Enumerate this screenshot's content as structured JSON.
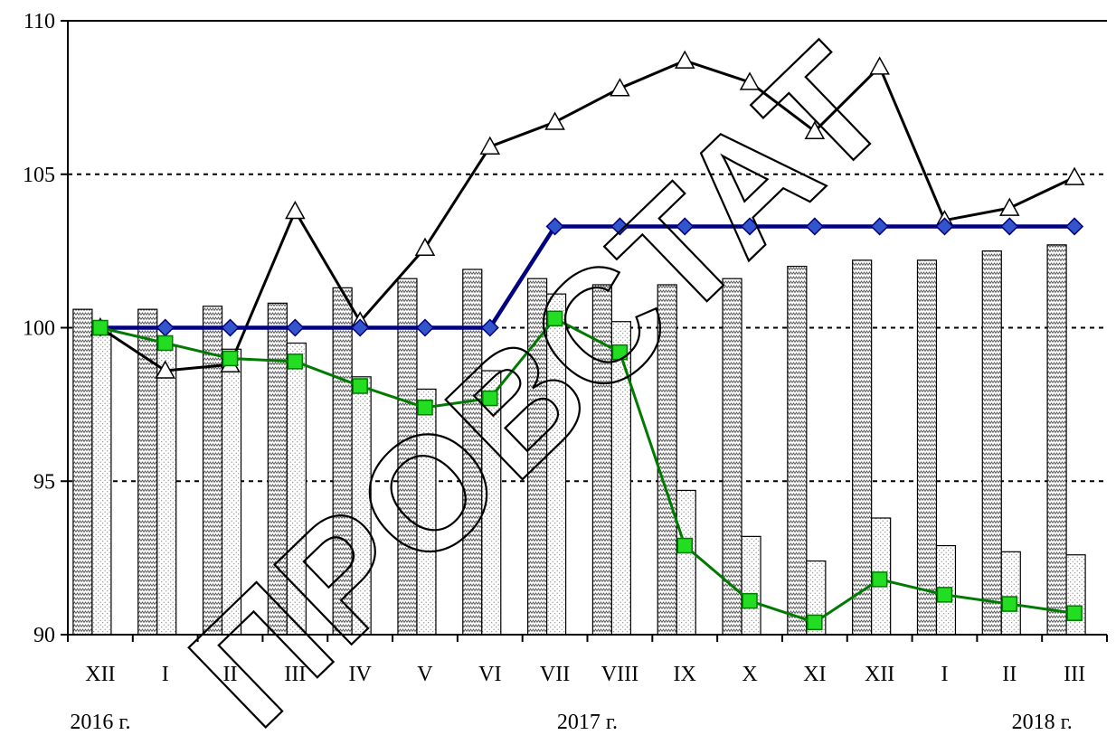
{
  "chart_data": {
    "type": "bar",
    "ylim": [
      90,
      110
    ],
    "yticks": [
      90,
      95,
      100,
      105,
      110
    ],
    "categories": [
      "XII",
      "I",
      "II",
      "III",
      "IV",
      "V",
      "VI",
      "VII",
      "VIII",
      "IX",
      "X",
      "XI",
      "XII",
      "I",
      "II",
      "III"
    ],
    "year_labels": [
      {
        "text": "2016 г.",
        "at_index": 0
      },
      {
        "text": "2017 г.",
        "at_index": 7.5
      },
      {
        "text": "2018 г.",
        "at_index": 14.5
      }
    ],
    "bar_series": [
      {
        "pattern": "zigzag",
        "values": [
          100.6,
          100.6,
          100.7,
          100.8,
          101.3,
          101.6,
          101.9,
          101.6,
          101.4,
          101.4,
          101.6,
          102.0,
          102.2,
          102.2,
          102.5,
          102.7
        ]
      },
      {
        "pattern": "dots",
        "values": [
          100.0,
          99.4,
          99.3,
          99.5,
          98.4,
          98.0,
          98.6,
          101.1,
          100.2,
          94.7,
          93.2,
          92.4,
          93.8,
          92.9,
          92.7,
          92.6
        ]
      }
    ],
    "line_series": [
      {
        "marker": "triangle",
        "color": "#000000",
        "values": [
          100.0,
          98.6,
          98.8,
          103.8,
          100.2,
          102.6,
          105.9,
          106.7,
          107.8,
          108.7,
          108.0,
          106.4,
          108.5,
          103.5,
          103.9,
          104.9
        ]
      },
      {
        "marker": "diamond",
        "color": "#000080",
        "fill": "#3355cc",
        "values": [
          100.0,
          100.0,
          100.0,
          100.0,
          100.0,
          100.0,
          100.0,
          103.3,
          103.3,
          103.3,
          103.3,
          103.3,
          103.3,
          103.3,
          103.3,
          103.3
        ]
      },
      {
        "marker": "square",
        "color": "#007a00",
        "fill": "#22dd22",
        "values": [
          100.0,
          99.5,
          99.0,
          98.9,
          98.1,
          97.4,
          97.7,
          100.3,
          99.2,
          92.9,
          91.1,
          90.4,
          91.8,
          91.3,
          91.0,
          90.7
        ]
      }
    ],
    "grid": "dashed-horizontal"
  },
  "watermark": {
    "text": "ПРОВСТАТ"
  }
}
